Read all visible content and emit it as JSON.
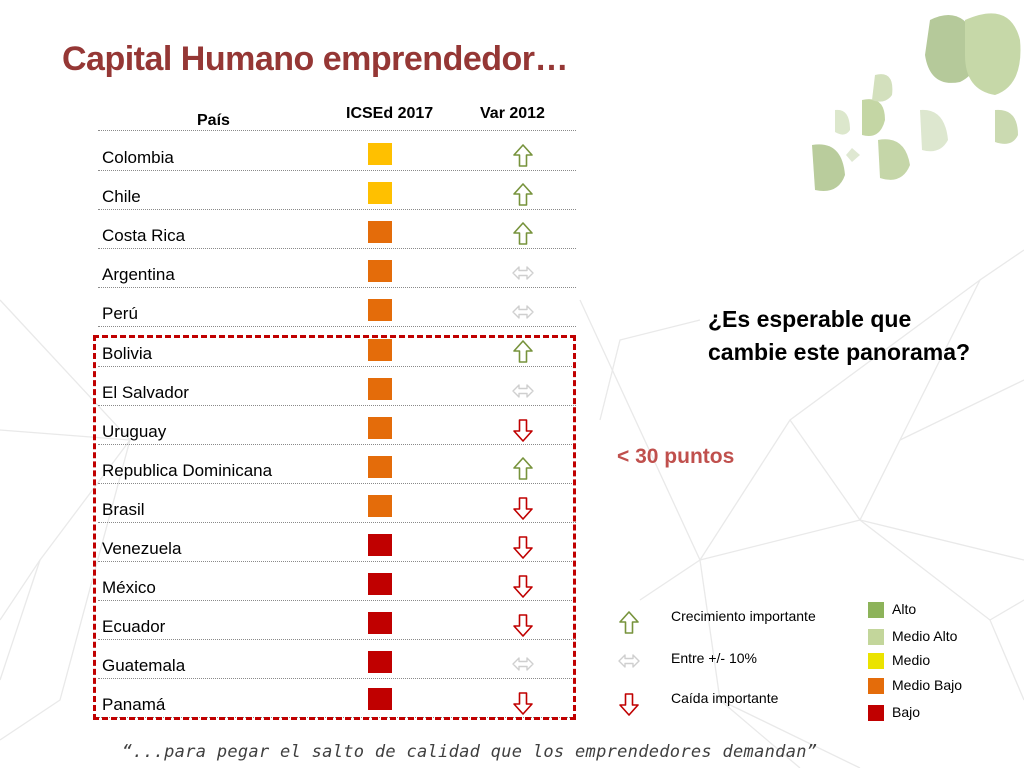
{
  "title": "Capital Humano emprendedor…",
  "table": {
    "headers": {
      "country": "País",
      "index": "ICSEd 2017",
      "var": "Var 2012"
    },
    "rows": [
      {
        "country": "Colombia",
        "level": "Medio",
        "trend": "up"
      },
      {
        "country": "Chile",
        "level": "Medio",
        "trend": "up"
      },
      {
        "country": "Costa Rica",
        "level": "Medio Bajo",
        "trend": "up"
      },
      {
        "country": "Argentina",
        "level": "Medio Bajo",
        "trend": "flat"
      },
      {
        "country": "Perú",
        "level": "Medio Bajo",
        "trend": "flat"
      },
      {
        "country": "Bolivia",
        "level": "Medio Bajo",
        "trend": "up"
      },
      {
        "country": "El Salvador",
        "level": "Medio Bajo",
        "trend": "flat"
      },
      {
        "country": "Uruguay",
        "level": "Medio Bajo",
        "trend": "down"
      },
      {
        "country": "Republica Dominicana",
        "level": "Medio Bajo",
        "trend": "up"
      },
      {
        "country": "Brasil",
        "level": "Medio Bajo",
        "trend": "down"
      },
      {
        "country": "Venezuela",
        "level": "Bajo",
        "trend": "down"
      },
      {
        "country": "México",
        "level": "Bajo",
        "trend": "down"
      },
      {
        "country": "Ecuador",
        "level": "Bajo",
        "trend": "down"
      },
      {
        "country": "Guatemala",
        "level": "Bajo",
        "trend": "flat"
      },
      {
        "country": "Panamá",
        "level": "Bajo",
        "trend": "down"
      }
    ]
  },
  "question": {
    "line1": "¿Es esperable que",
    "line2": "cambie este panorama?"
  },
  "threshold_label": "< 30 puntos",
  "trend_legend": {
    "up": "Crecimiento importante",
    "flat": "Entre +/- 10%",
    "down": "Caída importante"
  },
  "level_legend": [
    {
      "label": "Alto",
      "color": "#8db35a"
    },
    {
      "label": "Medio Alto",
      "color": "#c3d69b"
    },
    {
      "label": "Medio",
      "color": "#ebe300"
    },
    {
      "label": "Medio Bajo",
      "color": "#e46c0a"
    },
    {
      "label": "Bajo",
      "color": "#c00000"
    }
  ],
  "level_colors": {
    "Alto": "#8db35a",
    "Medio Alto": "#c3d69b",
    "Medio": "#ffc000",
    "Medio Bajo": "#e46c0a",
    "Bajo": "#c00000"
  },
  "arrow_colors": {
    "up": "#77933c",
    "flat": "#cfcfcf",
    "down": "#c00000"
  },
  "quote": "“...para pegar el salto de calidad que los emprendedores demandan”"
}
